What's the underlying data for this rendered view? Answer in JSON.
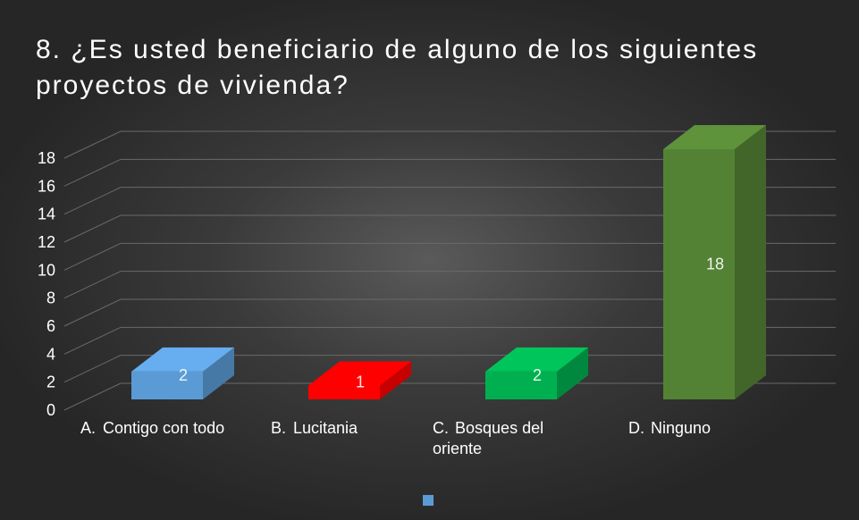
{
  "chart_data": {
    "type": "bar3d",
    "title": "8. ¿Es usted beneficiario de alguno de los siguientes proyectos de vivienda?",
    "categories": [
      "A.\tContigo con todo",
      "B.\tLucitania",
      "C.\tBosques del oriente",
      "D.\tNinguno"
    ],
    "values": [
      2,
      1,
      2,
      18
    ],
    "colors": [
      "#5b9bd5",
      "#ff0000",
      "#00b050",
      "#548235"
    ],
    "legend_color": "#5b9bd5",
    "ylim": [
      0,
      18
    ],
    "yticks": [
      0,
      2,
      4,
      6,
      8,
      10,
      12,
      14,
      16,
      18
    ],
    "grid": true
  }
}
